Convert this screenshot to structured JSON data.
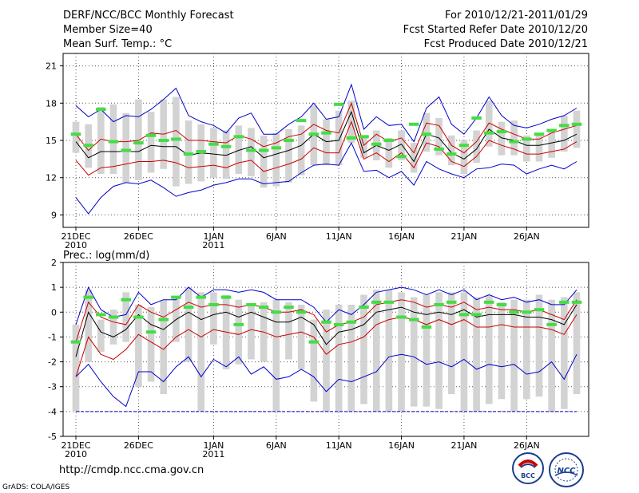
{
  "header": {
    "title_line1": "DERF/NCC/BCC Monthly Forecast",
    "title_line2": "Member Size=40",
    "title_line3": "Mean Surf. Temp.: °C",
    "right_line1": "For 2010/12/21-2011/01/29",
    "right_line2": "Fcst Started Refer Date 2010/12/20",
    "right_line3": "Fcst Produced Date 2010/12/21"
  },
  "footer": {
    "url": "http://cmdp.ncc.cma.gov.cn",
    "grads": "GrADS: COLA/IGES",
    "logo_bcc": "BCC",
    "logo_ncc": "NCC"
  },
  "colors": {
    "box": "#d3d3d3",
    "max_line": "#0000cc",
    "percentile_line": "#cc0000",
    "mean_line": "#000000",
    "marker": "#44dd44",
    "grid": "#555555"
  },
  "chart_data": [
    {
      "type": "line",
      "title": "Mean Surf. Temp.: °C",
      "ylim": [
        8,
        22
      ],
      "yticks": [
        21,
        18,
        15,
        12,
        9
      ],
      "x_days": 40,
      "xticks": [
        {
          "day": 0,
          "label": "21DEC",
          "sub": "2010"
        },
        {
          "day": 5,
          "label": "26DEC",
          "sub": ""
        },
        {
          "day": 11,
          "label": "1JAN",
          "sub": "2011"
        },
        {
          "day": 16,
          "label": "6JAN",
          "sub": ""
        },
        {
          "day": 21,
          "label": "11JAN",
          "sub": ""
        },
        {
          "day": 26,
          "label": "16JAN",
          "sub": ""
        },
        {
          "day": 31,
          "label": "21JAN",
          "sub": ""
        },
        {
          "day": 36,
          "label": "26JAN",
          "sub": ""
        }
      ],
      "series": [
        {
          "name": "max",
          "values": [
            17.8,
            16.9,
            17.5,
            16.5,
            17.0,
            16.9,
            17.5,
            18.3,
            19.2,
            17.0,
            16.5,
            16.2,
            15.6,
            16.8,
            17.2,
            15.5,
            15.5,
            16.3,
            16.9,
            18.0,
            16.7,
            16.9,
            19.5,
            15.9,
            16.9,
            16.2,
            16.3,
            14.9,
            17.6,
            18.5,
            16.3,
            15.5,
            16.8,
            18.5,
            17.0,
            16.2,
            16.0,
            16.3,
            16.7,
            17.0,
            17.6
          ]
        },
        {
          "name": "p90",
          "values": [
            15.5,
            14.2,
            15.1,
            14.9,
            14.9,
            15.0,
            15.6,
            15.5,
            15.8,
            15.0,
            15.0,
            14.9,
            14.8,
            15.4,
            15.1,
            14.5,
            14.8,
            15.3,
            15.5,
            16.3,
            15.8,
            15.6,
            18.0,
            14.6,
            15.5,
            14.9,
            15.2,
            14.0,
            16.4,
            16.2,
            14.6,
            14.0,
            14.9,
            16.4,
            15.9,
            15.5,
            15.1,
            15.1,
            15.6,
            15.9,
            16.2
          ]
        },
        {
          "name": "mean",
          "values": [
            14.9,
            13.6,
            14.1,
            14.1,
            14.1,
            14.1,
            14.6,
            14.5,
            14.5,
            13.8,
            14.0,
            13.9,
            13.8,
            14.2,
            14.5,
            13.6,
            13.9,
            14.2,
            14.6,
            15.5,
            14.9,
            15.0,
            17.3,
            14.0,
            14.6,
            14.2,
            14.7,
            13.3,
            15.5,
            15.2,
            14.0,
            13.5,
            14.3,
            15.9,
            15.2,
            15.0,
            14.6,
            14.6,
            14.8,
            15.0,
            15.5
          ]
        },
        {
          "name": "p10",
          "values": [
            13.4,
            12.2,
            12.8,
            12.9,
            13.1,
            13.3,
            13.3,
            13.4,
            13.2,
            12.8,
            12.9,
            13.0,
            12.8,
            13.2,
            13.4,
            12.5,
            12.8,
            13.1,
            13.5,
            14.4,
            14.0,
            14.0,
            16.5,
            13.5,
            14.0,
            13.3,
            14.0,
            12.8,
            14.8,
            14.5,
            13.3,
            12.9,
            13.7,
            15.0,
            14.6,
            14.3,
            13.9,
            13.9,
            14.1,
            14.3,
            14.9
          ]
        },
        {
          "name": "min",
          "values": [
            10.4,
            9.1,
            10.4,
            11.3,
            11.6,
            11.5,
            11.8,
            11.2,
            10.5,
            10.8,
            11.0,
            11.4,
            11.6,
            11.9,
            11.9,
            11.5,
            11.6,
            11.7,
            12.4,
            13.0,
            13.1,
            13.0,
            14.8,
            12.5,
            12.6,
            12.0,
            12.5,
            11.4,
            13.3,
            12.7,
            12.3,
            12.0,
            12.7,
            12.8,
            13.1,
            13.0,
            12.3,
            12.7,
            13.0,
            12.7,
            13.3
          ]
        },
        {
          "name": "marker",
          "values": [
            15.5,
            14.6,
            17.5,
            14.9,
            14.2,
            14.8,
            15.4,
            15.0,
            15.1,
            13.9,
            14.1,
            14.7,
            14.5,
            15.3,
            14.2,
            14.2,
            14.4,
            15.0,
            16.6,
            15.5,
            15.6,
            17.9,
            15.2,
            15.3,
            14.7,
            15.0,
            13.7,
            16.3,
            15.5,
            14.3,
            13.9,
            14.6,
            16.8,
            15.6,
            15.7,
            14.9,
            15.1,
            15.5,
            15.8,
            16.2,
            16.3
          ]
        },
        {
          "name": "box_high",
          "values": [
            16.5,
            16.3,
            17.7,
            17.9,
            17.2,
            18.3,
            17.3,
            18.3,
            18.5,
            16.6,
            16.3,
            16.0,
            15.8,
            16.2,
            16.0,
            15.4,
            15.6,
            15.9,
            16.2,
            17.8,
            16.7,
            17.4,
            18.2,
            15.4,
            15.8,
            15.2,
            15.8,
            14.8,
            17.2,
            16.8,
            15.4,
            15.0,
            15.8,
            18.2,
            16.5,
            16.6,
            15.4,
            15.4,
            15.7,
            17.0,
            17.4
          ]
        },
        {
          "name": "box_low",
          "values": [
            14.0,
            12.8,
            12.3,
            12.3,
            11.6,
            11.8,
            12.4,
            12.7,
            11.3,
            11.5,
            11.7,
            12.0,
            11.9,
            12.3,
            12.1,
            11.2,
            11.3,
            11.6,
            12.2,
            13.0,
            13.0,
            13.0,
            14.8,
            13.6,
            13.4,
            12.8,
            13.4,
            12.4,
            14.1,
            13.8,
            13.0,
            12.3,
            13.2,
            14.5,
            13.8,
            13.8,
            13.3,
            13.3,
            13.6,
            14.1,
            14.4
          ]
        }
      ]
    },
    {
      "type": "line",
      "title": "Prec.: log(mm/d)",
      "ylim": [
        -5,
        2
      ],
      "yticks": [
        2,
        1,
        0,
        -1,
        -2,
        -3,
        -4,
        -5
      ],
      "x_days": 40,
      "xticks": [
        {
          "day": 0,
          "label": "21DEC",
          "sub": "2010"
        },
        {
          "day": 5,
          "label": "26DEC",
          "sub": ""
        },
        {
          "day": 11,
          "label": "1JAN",
          "sub": "2011"
        },
        {
          "day": 16,
          "label": "6JAN",
          "sub": ""
        },
        {
          "day": 21,
          "label": "11JAN",
          "sub": ""
        },
        {
          "day": 26,
          "label": "16JAN",
          "sub": ""
        },
        {
          "day": 31,
          "label": "21JAN",
          "sub": ""
        },
        {
          "day": 36,
          "label": "26JAN",
          "sub": ""
        }
      ],
      "series": [
        {
          "name": "max",
          "values": [
            -0.5,
            1.0,
            0.1,
            -0.2,
            -0.1,
            0.8,
            0.3,
            0.5,
            0.5,
            1.0,
            0.6,
            0.9,
            0.9,
            0.8,
            0.9,
            0.8,
            0.5,
            0.5,
            0.5,
            0.2,
            -0.4,
            0.1,
            -0.1,
            0.3,
            0.8,
            0.9,
            1.0,
            0.9,
            0.7,
            0.9,
            0.7,
            0.9,
            0.5,
            0.7,
            0.5,
            0.6,
            0.4,
            0.5,
            0.3,
            0.3,
            0.9
          ]
        },
        {
          "name": "p90",
          "values": [
            -1.2,
            0.4,
            -0.2,
            -0.4,
            -0.5,
            0.3,
            0.0,
            -0.2,
            0.1,
            0.4,
            0.2,
            0.3,
            0.3,
            0.2,
            0.3,
            0.2,
            0.0,
            0.0,
            0.1,
            -0.1,
            -0.8,
            -0.5,
            -0.4,
            -0.2,
            0.3,
            0.4,
            0.5,
            0.4,
            0.2,
            0.3,
            0.2,
            0.4,
            0.1,
            0.2,
            0.1,
            0.1,
            0.0,
            0.1,
            -0.1,
            -0.3,
            0.5
          ]
        },
        {
          "name": "mean",
          "values": [
            -1.8,
            0.0,
            -0.8,
            -1.0,
            -0.7,
            -0.1,
            -0.5,
            -0.7,
            -0.3,
            0.0,
            -0.3,
            -0.1,
            0.0,
            -0.2,
            0.0,
            -0.2,
            -0.4,
            -0.4,
            -0.2,
            -0.5,
            -1.3,
            -0.8,
            -0.7,
            -0.5,
            0.0,
            0.1,
            0.2,
            0.0,
            -0.1,
            0.0,
            -0.1,
            0.1,
            -0.2,
            -0.1,
            -0.1,
            -0.1,
            -0.2,
            -0.2,
            -0.3,
            -0.5,
            0.3
          ]
        },
        {
          "name": "p10",
          "values": [
            -2.6,
            -1.0,
            -1.7,
            -1.9,
            -1.5,
            -0.9,
            -1.2,
            -1.5,
            -1.0,
            -0.7,
            -1.0,
            -0.7,
            -0.8,
            -0.9,
            -0.7,
            -0.8,
            -1.0,
            -0.9,
            -0.8,
            -1.0,
            -1.7,
            -1.3,
            -1.2,
            -1.0,
            -0.5,
            -0.3,
            -0.2,
            -0.3,
            -0.5,
            -0.3,
            -0.5,
            -0.3,
            -0.6,
            -0.6,
            -0.5,
            -0.6,
            -0.6,
            -0.6,
            -0.7,
            -0.9,
            -0.1
          ]
        },
        {
          "name": "min",
          "values": [
            -2.6,
            -2.1,
            -2.8,
            -3.4,
            -3.8,
            -2.4,
            -2.4,
            -2.8,
            -2.2,
            -1.8,
            -2.6,
            -1.9,
            -2.2,
            -1.8,
            -2.5,
            -2.2,
            -2.7,
            -2.6,
            -2.3,
            -2.6,
            -3.2,
            -2.7,
            -2.8,
            -2.6,
            -2.4,
            -1.8,
            -1.7,
            -1.8,
            -2.1,
            -2.0,
            -2.2,
            -1.9,
            -2.3,
            -2.1,
            -2.2,
            -2.1,
            -2.5,
            -2.4,
            -2.0,
            -2.7,
            -1.7
          ]
        },
        {
          "name": "marker",
          "values": [
            -1.2,
            0.6,
            -0.1,
            -0.2,
            0.5,
            -0.2,
            -0.8,
            -0.3,
            0.6,
            0.2,
            0.6,
            0.3,
            0.6,
            -0.5,
            0.3,
            0.2,
            0.0,
            0.2,
            0.0,
            -1.2,
            -0.4,
            -0.5,
            -0.4,
            0.2,
            0.4,
            0.4,
            -0.2,
            -0.3,
            -0.6,
            0.3,
            0.4,
            -0.1,
            -0.1,
            0.4,
            0.3,
            0.0,
            0.0,
            0.1,
            -0.5,
            0.4,
            0.4
          ]
        },
        {
          "name": "box_high",
          "values": [
            -0.5,
            0.9,
            -0.3,
            0.1,
            0.8,
            0.3,
            0.2,
            0.5,
            0.6,
            1.0,
            0.8,
            0.8,
            0.7,
            0.5,
            0.3,
            0.4,
            0.5,
            0.4,
            0.3,
            -0.3,
            0.1,
            0.3,
            0.3,
            0.7,
            0.9,
            0.9,
            0.8,
            0.6,
            0.7,
            0.8,
            0.8,
            0.8,
            0.6,
            0.7,
            0.4,
            0.5,
            0.5,
            0.7,
            0.5,
            0.6,
            0.8
          ]
        },
        {
          "name": "box_low",
          "values": [
            -4.0,
            -2.0,
            -1.6,
            -1.3,
            -1.2,
            -3.0,
            -2.8,
            -3.3,
            -1.2,
            -2.0,
            -4.0,
            -1.3,
            -2.3,
            -2.1,
            -1.9,
            -2.0,
            -4.0,
            -1.9,
            -2.3,
            -3.6,
            -4.0,
            -4.0,
            -4.0,
            -3.7,
            -4.0,
            -4.0,
            -4.0,
            -3.8,
            -3.8,
            -3.9,
            -3.3,
            -4.0,
            -4.0,
            -3.7,
            -3.5,
            -4.0,
            -3.5,
            -3.4,
            -4.0,
            -3.9,
            -3.3
          ]
        }
      ]
    }
  ]
}
